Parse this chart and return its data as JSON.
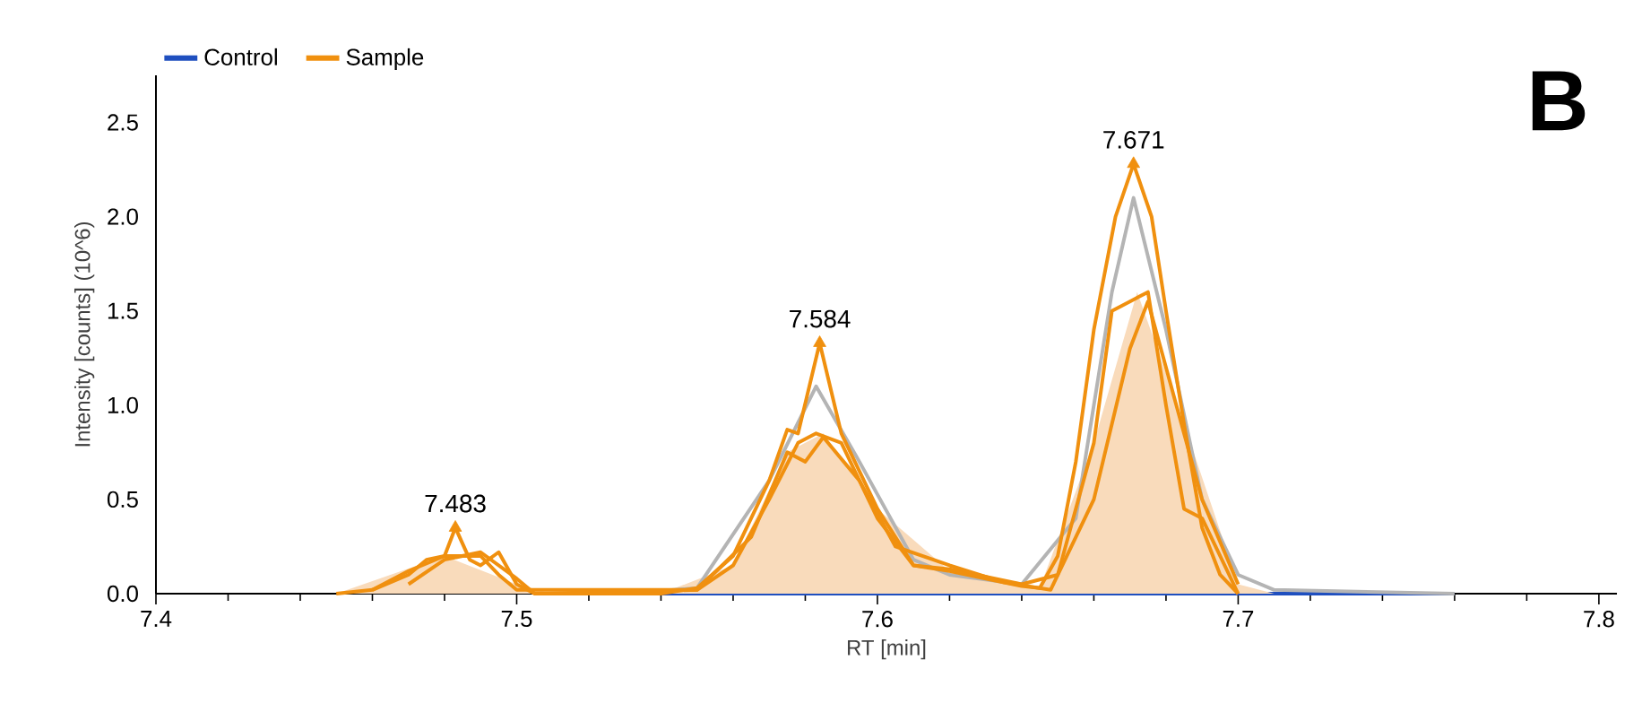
{
  "chart_data": {
    "type": "line",
    "xlabel": "RT [min]",
    "ylabel": "Intensity [counts] (10^6)",
    "xlim": [
      7.4,
      7.805
    ],
    "ylim": [
      0,
      2.75
    ],
    "xticks": [
      7.4,
      7.5,
      7.6,
      7.7,
      7.8
    ],
    "yticks": [
      {
        "value": 0,
        "label": "0.0"
      },
      0.5,
      {
        "value": 1,
        "label": "1.0"
      },
      1.5,
      {
        "value": 2,
        "label": "2.0"
      },
      2.5
    ],
    "legend": "top left",
    "annotations": [
      {
        "text": "7.483",
        "x": 7.483,
        "y": 0.35
      },
      {
        "text": "7.584",
        "x": 7.584,
        "y": 1.33
      },
      {
        "text": "7.671",
        "x": 7.671,
        "y": 2.28
      },
      "B"
    ],
    "series": [
      {
        "name": "Control",
        "color": "#1f4fbf",
        "x": [
          7.52,
          7.76
        ],
        "values": [
          0,
          0
        ]
      },
      {
        "color": "#f9dbbb",
        "type": "area",
        "x": [
          7.45,
          7.48,
          7.5,
          7.51,
          7.54,
          7.56,
          7.575,
          7.585,
          7.6,
          7.62,
          7.645,
          7.66,
          7.672,
          7.685,
          7.7,
          7.71
        ],
        "values": [
          0,
          0.2,
          0.05,
          0,
          0,
          0.15,
          0.75,
          0.85,
          0.45,
          0.12,
          0.03,
          0.8,
          1.6,
          0.9,
          0.05,
          0
        ]
      },
      {
        "color": "#b4b4b4",
        "x": [
          7.53,
          7.55,
          7.57,
          7.583,
          7.595,
          7.61,
          7.62,
          7.64,
          7.655,
          7.665,
          7.671,
          7.68,
          7.69,
          7.7,
          7.71,
          7.76
        ],
        "values": [
          0,
          0.03,
          0.6,
          1.1,
          0.7,
          0.18,
          0.1,
          0.05,
          0.4,
          1.6,
          2.1,
          1.4,
          0.5,
          0.1,
          0.02,
          0
        ]
      },
      {
        "name": "Sample",
        "color": "#f0900f",
        "x": [
          7.45,
          7.46,
          7.47,
          7.475,
          7.48,
          7.483,
          7.487,
          7.49,
          7.495,
          7.5,
          7.505,
          7.54,
          7.55,
          7.56,
          7.57,
          7.575,
          7.578,
          7.584,
          7.59,
          7.6,
          7.61,
          7.62,
          7.63,
          7.64,
          7.645,
          7.65,
          7.655,
          7.66,
          7.666,
          7.671,
          7.676,
          7.68,
          7.685,
          7.69,
          7.695,
          7.7
        ],
        "values": [
          0,
          0.02,
          0.1,
          0.18,
          0.2,
          0.35,
          0.18,
          0.15,
          0.22,
          0.05,
          0,
          0,
          0.03,
          0.2,
          0.6,
          0.87,
          0.85,
          1.33,
          0.85,
          0.45,
          0.15,
          0.12,
          0.08,
          0.04,
          0.03,
          0.2,
          0.7,
          1.4,
          2.0,
          2.28,
          2.0,
          1.5,
          0.9,
          0.35,
          0.1,
          0
        ]
      },
      {
        "color": "#f0900f",
        "x": [
          7.46,
          7.47,
          7.48,
          7.49,
          7.495,
          7.5,
          7.55,
          7.56,
          7.57,
          7.578,
          7.583,
          7.59,
          7.6,
          7.61,
          7.62,
          7.64,
          7.65,
          7.66,
          7.665,
          7.67,
          7.675,
          7.68,
          7.685,
          7.69,
          7.7
        ],
        "values": [
          0.02,
          0.12,
          0.2,
          0.2,
          0.1,
          0.02,
          0.02,
          0.15,
          0.5,
          0.8,
          0.85,
          0.8,
          0.4,
          0.15,
          0.13,
          0.05,
          0.1,
          0.8,
          1.5,
          1.55,
          1.6,
          1.0,
          0.45,
          0.4,
          0
        ]
      },
      {
        "color": "#f0900f",
        "x": [
          7.47,
          7.48,
          7.49,
          7.5,
          7.505,
          7.55,
          7.565,
          7.575,
          7.58,
          7.585,
          7.595,
          7.605,
          7.62,
          7.635,
          7.648,
          7.66,
          7.67,
          7.675,
          7.68,
          7.69,
          7.7
        ],
        "values": [
          0.05,
          0.18,
          0.22,
          0.08,
          0,
          0.02,
          0.3,
          0.75,
          0.7,
          0.83,
          0.6,
          0.25,
          0.15,
          0.06,
          0.02,
          0.5,
          1.3,
          1.55,
          1.2,
          0.5,
          0.05
        ]
      },
      {
        "color": "#f0900f",
        "type": "scatter",
        "marker": "triangle",
        "x": [
          7.483,
          7.584,
          7.671
        ],
        "values": [
          0.35,
          1.33,
          2.28
        ]
      }
    ]
  }
}
